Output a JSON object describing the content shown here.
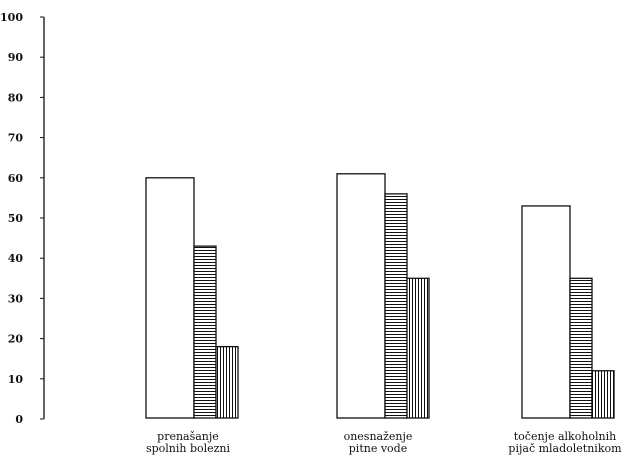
{
  "chart_data": {
    "type": "bar",
    "title": "",
    "xlabel": "",
    "ylabel": "",
    "ylim": [
      0,
      100
    ],
    "yticks": [
      "0",
      "10",
      "20",
      "30",
      "40",
      "50",
      "60",
      "70",
      "80",
      "90",
      "100"
    ],
    "grid": false,
    "legend": "none",
    "categories": [
      [
        "prenašanje",
        "spolnih bolezni"
      ],
      [
        "onesnaženje",
        "pitne vode"
      ],
      [
        "točenje alkoholnih",
        "pijač mladoletnikom"
      ]
    ],
    "series": [
      {
        "fill": "blank",
        "values": [
          60,
          61,
          53
        ]
      },
      {
        "fill": "horizontal-hatch",
        "values": [
          43,
          56,
          35
        ]
      },
      {
        "fill": "vertical-hatch",
        "values": [
          18,
          35,
          12
        ]
      }
    ],
    "colors": {
      "ink": "#111111",
      "background": "#ffffff"
    }
  }
}
